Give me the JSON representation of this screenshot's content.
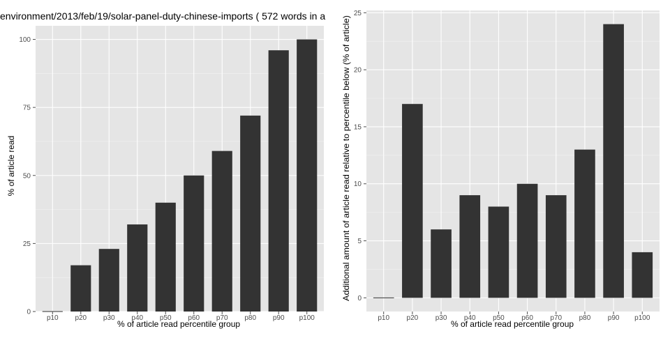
{
  "chart_data": [
    {
      "type": "bar",
      "title": "environment/2013/feb/19/solar-panel-duty-chinese-imports ( 572 words in a",
      "xlabel": "% of article read percentile group",
      "ylabel": "% of article read",
      "categories": [
        "p10",
        "p20",
        "p30",
        "p40",
        "p50",
        "p60",
        "p70",
        "p80",
        "p90",
        "p100"
      ],
      "values": [
        0,
        17,
        23,
        32,
        40,
        50,
        59,
        72,
        96,
        100
      ],
      "ylim": [
        0,
        105
      ],
      "yticks": [
        0,
        25,
        50,
        75,
        100
      ],
      "grid": true,
      "colors": {
        "bar": "#333333",
        "panel": "#e5e5e5",
        "grid": "#ffffff"
      }
    },
    {
      "type": "bar",
      "title": "",
      "xlabel": "% of article read percentile group",
      "ylabel": "Additional amount of article read relative to percentile below (% of article)",
      "categories": [
        "p10",
        "p20",
        "p30",
        "p40",
        "p50",
        "p60",
        "p70",
        "p80",
        "p90",
        "p100"
      ],
      "values": [
        0,
        17,
        6,
        9,
        8,
        10,
        9,
        13,
        24,
        4
      ],
      "ylim": [
        -1.2,
        25.2
      ],
      "yticks": [
        0,
        5,
        10,
        15,
        20,
        25
      ],
      "grid": true,
      "colors": {
        "bar": "#333333",
        "panel": "#e5e5e5",
        "grid": "#ffffff"
      }
    }
  ]
}
